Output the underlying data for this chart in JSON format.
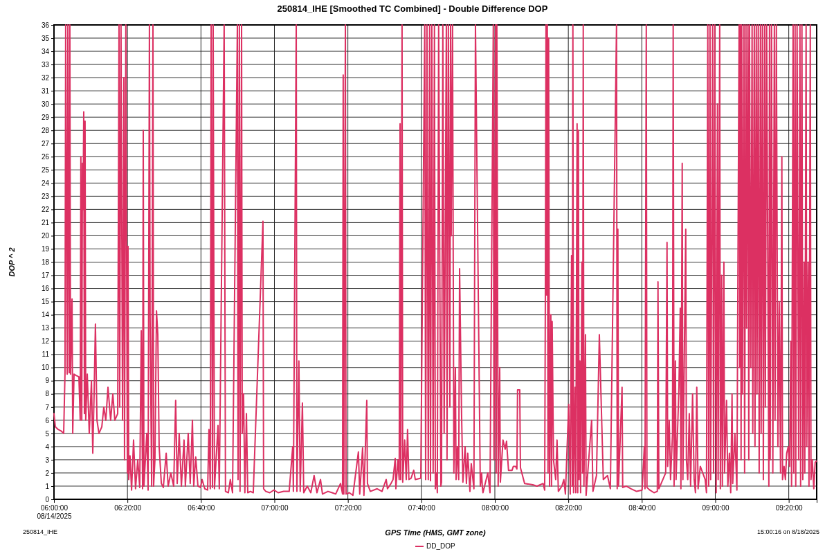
{
  "chart_data": {
    "type": "line",
    "title": "250814_IHE [Smoothed TC Combined] - Double Difference DOP",
    "xlabel": "GPS Time (HMS, GMT zone)",
    "ylabel": "DOP ^ 2",
    "annotations": [
      "250814_IHE",
      "15:00:16 on 8/18/2025"
    ],
    "xlim": [
      6,
      9.46
    ],
    "ylim": [
      0,
      36
    ],
    "xticks": [
      {
        "value": 6,
        "label": "06:00:00\n08/14/2025"
      },
      {
        "value": 6.3333,
        "label": "06:20:00"
      },
      {
        "value": 6.6667,
        "label": "06:40:00"
      },
      {
        "value": 7,
        "label": "07:00:00"
      },
      {
        "value": 7.3333,
        "label": "07:20:00"
      },
      {
        "value": 7.6667,
        "label": "07:40:00"
      },
      {
        "value": 8,
        "label": "08:00:00"
      },
      {
        "value": 8.3333,
        "label": "08:20:00"
      },
      {
        "value": 8.6667,
        "label": "08:40:00"
      },
      {
        "value": 9,
        "label": "09:00:00"
      },
      {
        "value": 9.3333,
        "label": "09:20:00"
      }
    ],
    "yticks": [
      0,
      1,
      2,
      3,
      4,
      5,
      6,
      7,
      8,
      9,
      10,
      11,
      12,
      13,
      14,
      15,
      16,
      17,
      18,
      19,
      20,
      21,
      22,
      23,
      24,
      25,
      26,
      27,
      28,
      29,
      30,
      31,
      32,
      33,
      34,
      35,
      36
    ],
    "grid": true,
    "legend": "bottom",
    "marker": "none",
    "line_style": "solid",
    "series": [
      {
        "name": "DD_DOP",
        "color": "#dc3062",
        "x": [
          6.0,
          6.006,
          6.019,
          6.031,
          6.044,
          6.05,
          6.053,
          6.06,
          6.063,
          6.069,
          6.072,
          6.075,
          6.082,
          6.085,
          6.091,
          6.1,
          6.113,
          6.119,
          6.122,
          6.126,
          6.129,
          6.132,
          6.135,
          6.138,
          6.141,
          6.144,
          6.151,
          6.16,
          6.17,
          6.176,
          6.182,
          6.188,
          6.195,
          6.204,
          6.217,
          6.226,
          6.235,
          6.245,
          6.257,
          6.267,
          6.276,
          6.289,
          6.295,
          6.298,
          6.304,
          6.311,
          6.317,
          6.32,
          6.326,
          6.333,
          6.336,
          6.339,
          6.345,
          6.352,
          6.361,
          6.37,
          6.38,
          6.389,
          6.396,
          6.402,
          6.405,
          6.408,
          6.421,
          6.427,
          6.433,
          6.436,
          6.443,
          6.449,
          6.452,
          6.458,
          6.465,
          6.471,
          6.477,
          6.487,
          6.496,
          6.509,
          6.518,
          6.53,
          6.543,
          6.552,
          6.559,
          6.568,
          6.578,
          6.59,
          6.596,
          6.609,
          6.618,
          6.628,
          6.634,
          6.643,
          6.653,
          6.665,
          6.672,
          6.684,
          6.697,
          6.703,
          6.709,
          6.713,
          6.719,
          6.722,
          6.728,
          6.744,
          6.75,
          6.772,
          6.778,
          6.791,
          6.8,
          6.81,
          6.832,
          6.835,
          6.841,
          6.844,
          6.851,
          6.854,
          6.86,
          6.866,
          6.873,
          6.879,
          6.891,
          6.904,
          6.948,
          6.951,
          6.961,
          6.979,
          6.998,
          7.017,
          7.042,
          7.067,
          7.083,
          7.086,
          7.099,
          7.102,
          7.111,
          7.117,
          7.127,
          7.133,
          7.149,
          7.165,
          7.18,
          7.193,
          7.209,
          7.218,
          7.243,
          7.262,
          7.278,
          7.3,
          7.309,
          7.312,
          7.315,
          7.318,
          7.322,
          7.325,
          7.34,
          7.356,
          7.381,
          7.387,
          7.4,
          7.406,
          7.419,
          7.422,
          7.435,
          7.466,
          7.488,
          7.507,
          7.513,
          7.529,
          7.538,
          7.548,
          7.551,
          7.56,
          7.566,
          7.57,
          7.573,
          7.579,
          7.582,
          7.591,
          7.598,
          7.604,
          7.61,
          7.62,
          7.632,
          7.639,
          7.664,
          7.682,
          7.686,
          7.692,
          7.698,
          7.704,
          7.708,
          7.714,
          7.72,
          7.726,
          7.73,
          7.736,
          7.739,
          7.745,
          7.755,
          7.758,
          7.764,
          7.77,
          7.78,
          7.783,
          7.789,
          7.796,
          7.799,
          7.802,
          7.808,
          7.814,
          7.821,
          7.824,
          7.83,
          7.836,
          7.84,
          7.849,
          7.855,
          7.865,
          7.871,
          7.877,
          7.887,
          7.893,
          7.905,
          7.912,
          7.934,
          7.94,
          7.943,
          7.946,
          7.968,
          7.978,
          7.993,
          7.996,
          8.003,
          8.006,
          8.009,
          8.015,
          8.022,
          8.025,
          8.037,
          8.047,
          8.053,
          8.062,
          8.078,
          8.084,
          8.094,
          8.1,
          8.103,
          8.113,
          8.116,
          8.135,
          8.172,
          8.191,
          8.219,
          8.226,
          8.229,
          8.232,
          8.235,
          8.238,
          8.241,
          8.244,
          8.248,
          8.254,
          8.257,
          8.26,
          8.266,
          8.276,
          8.282,
          8.288,
          8.304,
          8.313,
          8.32,
          8.335,
          8.342,
          8.348,
          8.351,
          8.354,
          8.357,
          8.364,
          8.367,
          8.373,
          8.376,
          8.379,
          8.382,
          8.386,
          8.389,
          8.395,
          8.398,
          8.401,
          8.404,
          8.411,
          8.414,
          8.439,
          8.445,
          8.461,
          8.474,
          8.492,
          8.511,
          8.524,
          8.552,
          8.555,
          8.558,
          8.561,
          8.577,
          8.58,
          8.596,
          8.618,
          8.643,
          8.668,
          8.678,
          8.681,
          8.687,
          8.69,
          8.703,
          8.722,
          8.737,
          8.74,
          8.744,
          8.775,
          8.781,
          8.784,
          8.791,
          8.797,
          8.806,
          8.809,
          8.813,
          8.819,
          8.822,
          8.835,
          8.841,
          8.844,
          8.85,
          8.853,
          8.866,
          8.869,
          8.875,
          8.882,
          8.888,
          8.897,
          8.904,
          8.91,
          8.916,
          8.922,
          8.932,
          8.954,
          8.96,
          8.966,
          8.97,
          8.976,
          8.979,
          8.988,
          8.992,
          8.998,
          9.001,
          9.004,
          9.01,
          9.013,
          9.02,
          9.023,
          9.029,
          9.032,
          9.039,
          9.042,
          9.051,
          9.057,
          9.064,
          9.07,
          9.076,
          9.079,
          9.089,
          9.098,
          9.108,
          9.111,
          9.114,
          9.117,
          9.12,
          9.123,
          9.13,
          9.133,
          9.139,
          9.142,
          9.148,
          9.152,
          9.155,
          9.161,
          9.167,
          9.17,
          9.177,
          9.18,
          9.186,
          9.189,
          9.195,
          9.199,
          9.205,
          9.208,
          9.214,
          9.218,
          9.224,
          9.227,
          9.233,
          9.24,
          9.243,
          9.246,
          9.249,
          9.255,
          9.261,
          9.268,
          9.271,
          9.277,
          9.284,
          9.29,
          9.296,
          9.302,
          9.305,
          9.312,
          9.318,
          9.324,
          9.331,
          9.337,
          9.343,
          9.346,
          9.353,
          9.356,
          9.362,
          9.365,
          9.371,
          9.378,
          9.384,
          9.387,
          9.393,
          9.397,
          9.403,
          9.406,
          9.412,
          9.415,
          9.421,
          9.425,
          9.431,
          9.434,
          9.44,
          9.447,
          9.453,
          9.459
        ],
        "values": [
          6.5,
          5.5,
          5.3,
          5.2,
          5.0,
          9.6,
          36,
          9.5,
          36,
          9.6,
          36,
          9.5,
          15.2,
          5.0,
          9.5,
          9.4,
          9.3,
          6.0,
          26,
          6.0,
          25.5,
          22,
          29.4,
          6.5,
          28.7,
          6,
          9.5,
          5,
          9,
          3.5,
          8,
          13.3,
          6,
          5,
          5.5,
          7,
          6,
          8.5,
          6,
          8,
          6,
          6.5,
          36,
          7,
          36,
          6,
          32,
          3,
          36,
          2,
          19.2,
          1.5,
          3.3,
          0.7,
          4.5,
          0.8,
          3,
          0.9,
          12.8,
          0.8,
          28,
          1,
          5,
          0.7,
          36,
          14,
          1,
          36,
          1,
          3,
          14.3,
          12.5,
          4,
          1.2,
          0.9,
          3.5,
          1,
          2,
          1,
          7.5,
          1.2,
          5,
          1,
          4.5,
          1,
          5,
          1.2,
          6,
          1,
          3.2,
          1,
          0.9,
          1.5,
          0.8,
          0.7,
          5.3,
          0.8,
          36,
          0.9,
          36,
          0.8,
          5.6,
          0.8,
          36,
          0.6,
          0.5,
          1.5,
          0.5,
          36,
          1.5,
          36,
          0.6,
          36,
          5,
          8,
          0.5,
          6.5,
          0.5,
          0.6,
          0.5,
          21.1,
          0.8,
          0.6,
          0.5,
          0.7,
          0.5,
          0.6,
          0.6,
          4,
          0.6,
          36,
          0.6,
          10.5,
          0.6,
          7.3,
          0.5,
          1.0,
          0.5,
          1.8,
          0.5,
          1.5,
          0.4,
          0.6,
          0.5,
          0.4,
          1.2,
          0.4,
          32.2,
          0.4,
          15,
          36,
          0.4,
          0.5,
          0.3,
          3.6,
          0.4,
          3.9,
          0.3,
          7.5,
          1.2,
          0.6,
          0.8,
          0.6,
          1.5,
          0.8,
          1.2,
          1.5,
          3.1,
          0.8,
          3,
          1.5,
          28.5,
          1.5,
          36,
          1.3,
          4.5,
          1.5,
          5.3,
          1.5,
          1.6,
          2.2,
          1.5,
          1.6,
          36,
          1.5,
          36,
          1.5,
          36,
          1.4,
          36,
          2,
          36,
          0.8,
          2,
          0.5,
          36,
          1,
          1.3,
          36,
          5,
          36,
          3,
          36,
          7,
          36,
          20,
          36,
          2,
          10,
          1.5,
          4,
          1.5,
          17.5,
          6.5,
          1.3,
          4,
          1.2,
          3.5,
          0.6,
          2.7,
          0.8,
          36,
          1,
          2,
          1.0,
          0.5,
          2,
          0.5,
          36,
          3,
          36,
          2,
          36,
          1,
          10,
          1.3,
          4.5,
          3.8,
          4.4,
          2.2,
          2.2,
          2.5,
          2.5,
          2.3,
          8.3,
          8.3,
          2.4,
          1.2,
          1.1,
          1,
          1.2,
          0.7,
          15,
          36,
          15.5,
          36,
          2,
          35,
          1,
          14,
          1,
          13.5,
          3,
          1.5,
          4.5,
          0.6,
          1,
          1.5,
          0.4,
          7.2,
          0.4,
          18.5,
          1,
          36,
          0.5,
          8.5,
          0.5,
          28.5,
          0.5,
          28,
          1.5,
          10.5,
          0.5,
          18,
          2,
          36,
          1,
          12.5,
          0.3,
          6,
          0.6,
          1.8,
          12.5,
          1.5,
          1.8,
          0.8,
          36,
          0.8,
          20.5,
          1,
          8.5,
          0.9,
          1.0,
          0.8,
          0.6,
          0.7,
          4,
          0.8,
          36,
          0.9,
          0.7,
          0.5,
          0.6,
          16.5,
          0.8,
          2,
          19.5,
          2.5,
          6,
          1.5,
          5,
          36,
          1,
          10.5,
          1.5,
          8.5,
          14.5,
          0.8,
          25.5,
          1.5,
          20.5,
          3,
          1.5,
          6.5,
          1.0,
          8,
          1.5,
          0.5,
          8.5,
          0.8,
          2.5,
          1.5,
          0.5,
          36,
          1,
          36,
          1.5,
          36,
          2,
          36,
          14,
          0.5,
          30,
          1.5,
          36,
          0.8,
          17,
          1,
          18,
          2,
          7.5,
          1,
          3.5,
          0.5,
          8,
          1.2,
          5,
          0.7,
          36,
          10,
          36,
          3,
          36,
          8,
          36,
          2,
          36,
          13,
          36,
          3,
          36,
          10,
          36,
          5,
          36,
          4,
          36,
          8,
          36,
          2,
          36,
          5,
          36,
          1.5,
          36,
          7,
          36,
          11,
          1,
          36,
          3,
          36,
          2,
          36,
          6,
          36,
          4,
          15,
          2,
          26,
          1.5,
          2.5,
          1.5,
          3.5,
          4,
          2.5,
          12,
          1,
          36,
          2,
          36,
          1,
          36,
          3,
          36,
          1,
          36,
          1.5,
          18,
          2,
          36,
          4,
          18,
          1,
          36,
          1.5,
          3,
          0.8,
          2.8,
          2.9
        ]
      }
    ]
  }
}
